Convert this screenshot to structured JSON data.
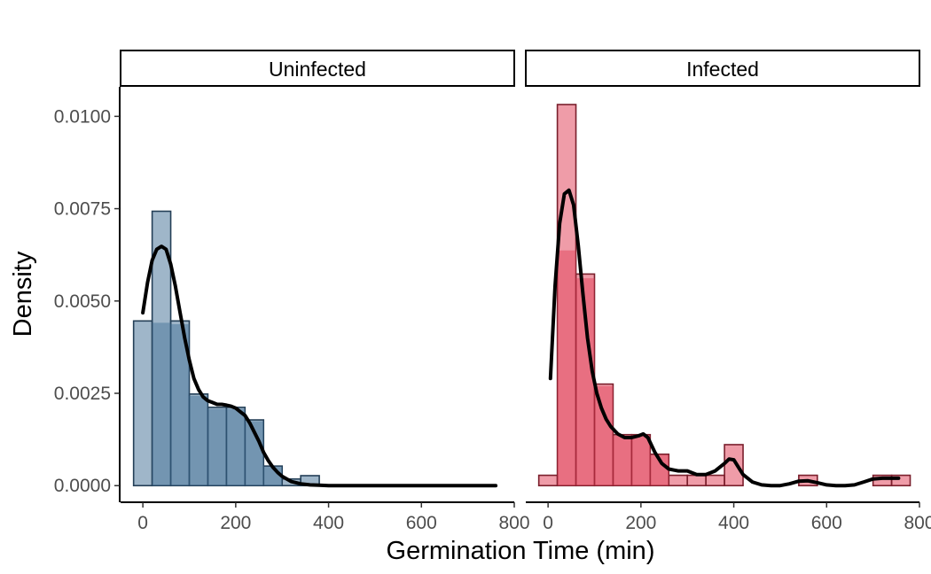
{
  "chart_data": {
    "type": "histogram",
    "xlabel": "Germination Time (min)",
    "ylabel": "Density",
    "xlim": [
      -48,
      800
    ],
    "ylim": [
      -0.00045,
      0.0108
    ],
    "x_ticks": [
      0,
      200,
      400,
      600,
      800
    ],
    "y_ticks": [
      0,
      0.0025,
      0.005,
      0.0075,
      0.01
    ],
    "y_tick_labels": [
      "0.0000",
      "0.0025",
      "0.0050",
      "0.0075",
      "0.0100"
    ],
    "bin_width": 40,
    "grid": false,
    "legend": "none",
    "panels": [
      {
        "label": "Uninfected",
        "fill_color": "#3f6d94",
        "edge_color": "#243f57",
        "bins": [
          {
            "x0": -20,
            "x1": 20,
            "density": 0.00446
          },
          {
            "x0": 20,
            "x1": 60,
            "density": 0.00743
          },
          {
            "x0": 60,
            "x1": 100,
            "density": 0.00446
          },
          {
            "x0": 100,
            "x1": 140,
            "density": 0.00248
          },
          {
            "x0": 140,
            "x1": 180,
            "density": 0.00212
          },
          {
            "x0": 180,
            "x1": 220,
            "density": 0.00212
          },
          {
            "x0": 220,
            "x1": 260,
            "density": 0.00178
          },
          {
            "x0": 260,
            "x1": 300,
            "density": 0.00053
          },
          {
            "x0": 300,
            "x1": 340,
            "density": 0.00018
          },
          {
            "x0": 340,
            "x1": 380,
            "density": 0.00027
          }
        ],
        "kde": {
          "x": [
            0,
            10,
            20,
            30,
            40,
            50,
            60,
            70,
            80,
            90,
            100,
            110,
            120,
            130,
            140,
            150,
            160,
            170,
            180,
            190,
            200,
            210,
            220,
            230,
            240,
            250,
            260,
            270,
            280,
            290,
            300,
            320,
            340,
            360,
            380,
            400,
            450,
            500,
            600,
            700,
            760
          ],
          "y": [
            0.00468,
            0.0055,
            0.0061,
            0.0064,
            0.00648,
            0.0064,
            0.006,
            0.0054,
            0.0047,
            0.004,
            0.0034,
            0.0029,
            0.0026,
            0.0024,
            0.0023,
            0.00225,
            0.0022,
            0.0022,
            0.00218,
            0.00215,
            0.0021,
            0.002,
            0.0019,
            0.0017,
            0.00145,
            0.0012,
            0.0009,
            0.00068,
            0.0005,
            0.00036,
            0.00025,
            0.00011,
            5e-05,
            2e-05,
            1e-05,
            0.0,
            0.0,
            0.0,
            0.0,
            0.0,
            0.0
          ]
        }
      },
      {
        "label": "Infected",
        "fill_color": "#e03a52",
        "edge_color": "#7a1f2c",
        "bins": [
          {
            "x0": -20,
            "x1": 20,
            "density": 0.00028
          },
          {
            "x0": 20,
            "x1": 60,
            "density": 0.01032
          },
          {
            "x0": 60,
            "x1": 100,
            "density": 0.00573
          },
          {
            "x0": 100,
            "x1": 140,
            "density": 0.00275
          },
          {
            "x0": 140,
            "x1": 180,
            "density": 0.00138
          },
          {
            "x0": 180,
            "x1": 220,
            "density": 0.00138
          },
          {
            "x0": 220,
            "x1": 260,
            "density": 0.00085
          },
          {
            "x0": 260,
            "x1": 300,
            "density": 0.00028
          },
          {
            "x0": 300,
            "x1": 340,
            "density": 0.00028
          },
          {
            "x0": 340,
            "x1": 380,
            "density": 0.00028
          },
          {
            "x0": 380,
            "x1": 420,
            "density": 0.00111
          },
          {
            "x0": 420,
            "x1": 460,
            "density": 0.0
          },
          {
            "x0": 460,
            "x1": 500,
            "density": 0.0
          },
          {
            "x0": 500,
            "x1": 540,
            "density": 0.0
          },
          {
            "x0": 540,
            "x1": 580,
            "density": 0.00028
          },
          {
            "x0": 580,
            "x1": 620,
            "density": 0.0
          },
          {
            "x0": 620,
            "x1": 660,
            "density": 0.0
          },
          {
            "x0": 660,
            "x1": 700,
            "density": 0.0
          },
          {
            "x0": 700,
            "x1": 740,
            "density": 0.00028
          },
          {
            "x0": 740,
            "x1": 780,
            "density": 0.00028
          }
        ],
        "kde": {
          "x": [
            5,
            15,
            25,
            35,
            45,
            55,
            65,
            75,
            85,
            95,
            105,
            115,
            125,
            135,
            150,
            165,
            180,
            195,
            205,
            215,
            230,
            245,
            260,
            280,
            300,
            320,
            340,
            360,
            380,
            390,
            400,
            410,
            420,
            440,
            460,
            480,
            500,
            520,
            540,
            560,
            580,
            600,
            620,
            640,
            660,
            680,
            700,
            720,
            740,
            755
          ],
          "y": [
            0.0029,
            0.0054,
            0.0071,
            0.0079,
            0.008,
            0.0076,
            0.0065,
            0.0052,
            0.004,
            0.0031,
            0.0025,
            0.0021,
            0.0018,
            0.0016,
            0.0014,
            0.0013,
            0.0013,
            0.00135,
            0.0014,
            0.0013,
            0.0009,
            0.0006,
            0.00045,
            0.0004,
            0.0004,
            0.0003,
            0.0003,
            0.0004,
            0.0006,
            0.00072,
            0.0007,
            0.0005,
            0.0003,
            0.0001,
            2e-05,
            0.0,
            0.0,
            5e-05,
            0.00012,
            0.00013,
            8e-05,
            2e-05,
            0.0,
            0.0,
            2e-05,
            0.0001,
            0.00018,
            0.0002,
            0.0002,
            0.0002
          ]
        }
      }
    ]
  }
}
